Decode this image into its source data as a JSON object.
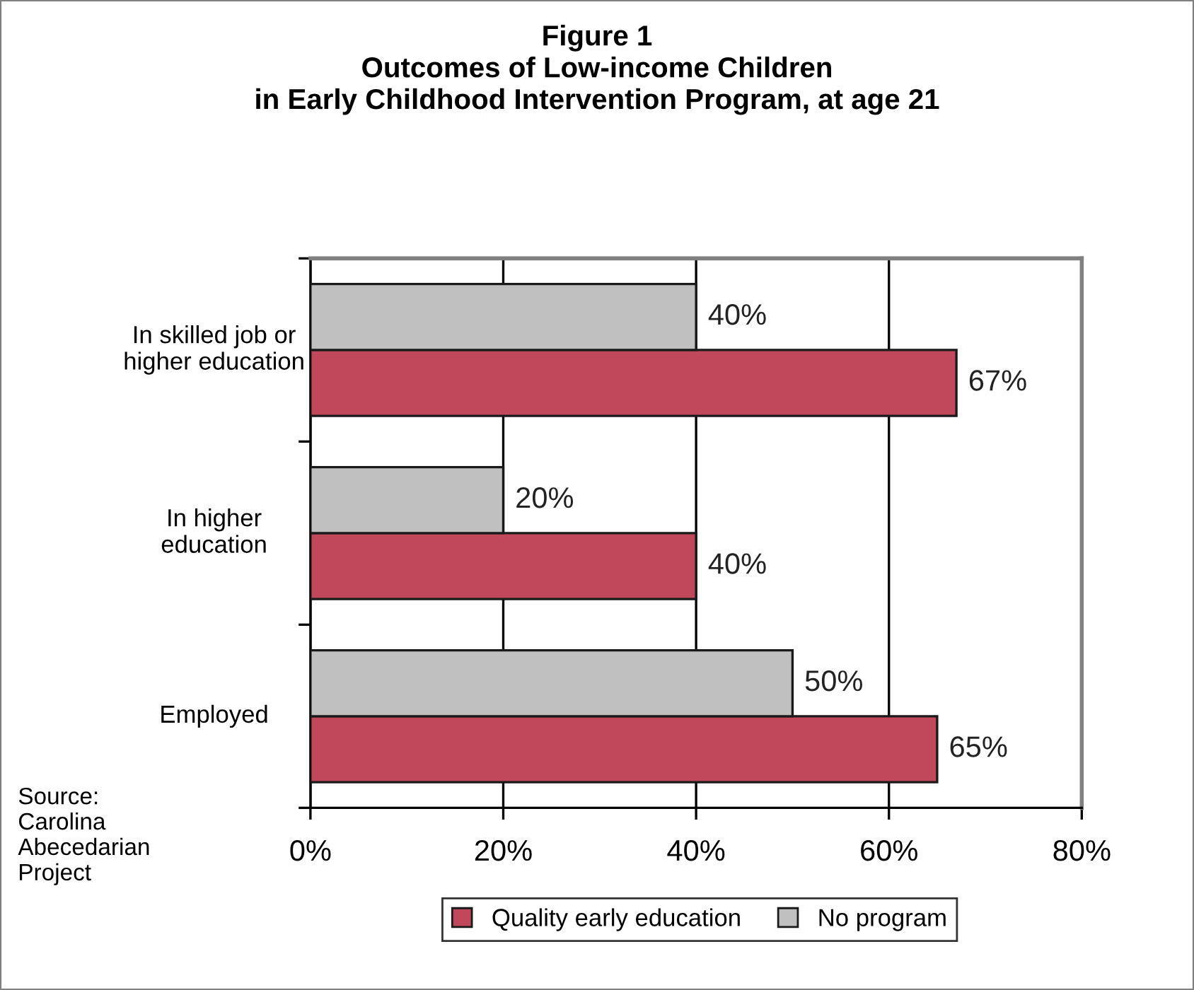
{
  "chart_data": {
    "type": "bar",
    "orientation": "horizontal",
    "title": "Figure 1\nOutcomes of Low-income Children\nin Early Childhood Intervention Program, at age 21",
    "categories": [
      "In skilled job or\nhigher education",
      "In higher\neducation",
      "Employed"
    ],
    "series": [
      {
        "name": "Quality early education",
        "color": "#c0485a",
        "values": [
          67,
          40,
          65
        ],
        "value_labels": [
          "67%",
          "40%",
          "65%"
        ]
      },
      {
        "name": "No program",
        "color": "#c0c0c0",
        "values": [
          40,
          20,
          50
        ],
        "value_labels": [
          "40%",
          "20%",
          "50%"
        ]
      }
    ],
    "xlim": [
      0,
      80
    ],
    "xticks": [
      {
        "value": 0,
        "label": "0%"
      },
      {
        "value": 20,
        "label": "20%"
      },
      {
        "value": 40,
        "label": "40%"
      },
      {
        "value": 60,
        "label": "60%"
      },
      {
        "value": 80,
        "label": "80%"
      }
    ],
    "grid": "x",
    "legend": "bottom",
    "annotations": [
      "Source:\nCarolina\nAbecedarian\nProject"
    ]
  }
}
